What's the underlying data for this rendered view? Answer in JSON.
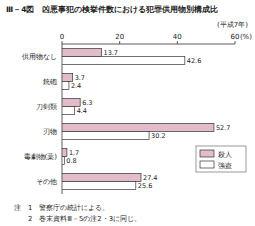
{
  "chart_data": {
    "type": "bar",
    "orientation": "horizontal",
    "title": "Ⅲ－4図　凶悪事犯の検挙件数における犯罪供用物別構成比",
    "subtitle": "(平成7年)",
    "x_label": "(%)",
    "categories": [
      "供用物なし",
      "銃砲",
      "刀剣類",
      "刃物",
      "毒劇物(薬)",
      "その他"
    ],
    "series": [
      {
        "name": "殺人",
        "color": "#e3bccb",
        "values": [
          13.7,
          3.7,
          6.3,
          52.7,
          1.7,
          27.4
        ]
      },
      {
        "name": "強盗",
        "color": "#ffffff",
        "values": [
          42.6,
          2.4,
          4.4,
          30.2,
          0.8,
          25.6
        ]
      }
    ],
    "xlim": [
      0,
      60
    ],
    "xticks": [
      0,
      20,
      40,
      60
    ],
    "grid": false,
    "legend": "right",
    "data_labels": true,
    "notes": [
      "注　1　警察庁の統計による。",
      "　　2　巻末資料Ⅲ－5の注2・3に同じ。"
    ]
  }
}
